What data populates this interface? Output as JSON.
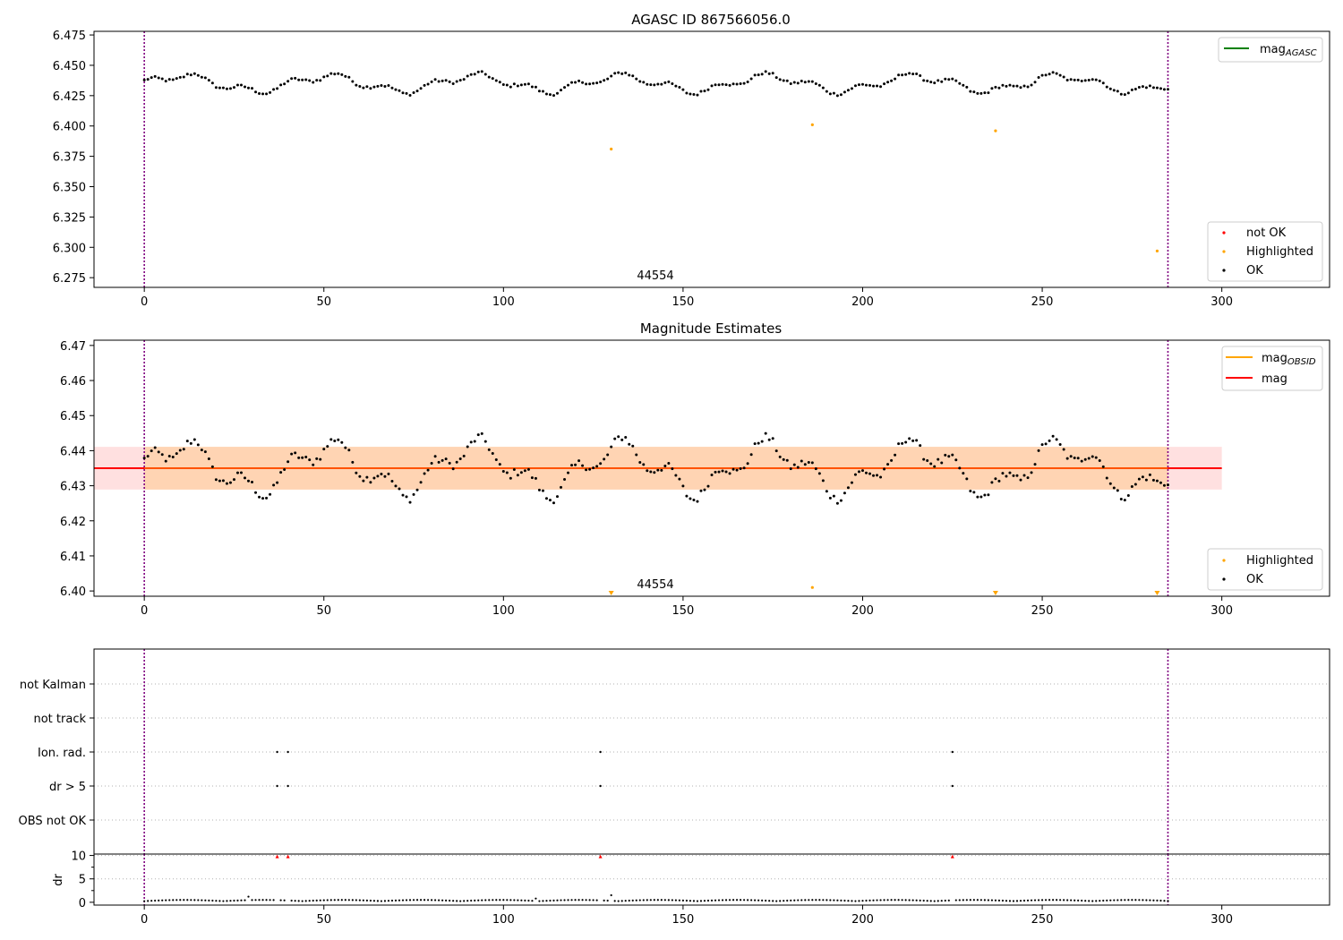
{
  "chart_data": [
    {
      "type": "scatter",
      "title": "AGASC ID 867566056.0",
      "xlabel": "",
      "ylabel": "",
      "xlim": [
        -14,
        330
      ],
      "ylim": [
        6.267,
        6.478
      ],
      "xticks": [
        0,
        50,
        100,
        150,
        200,
        250,
        300
      ],
      "yticks": [
        6.275,
        6.3,
        6.325,
        6.35,
        6.375,
        6.4,
        6.425,
        6.45,
        6.475
      ],
      "ytick_decimals": 3,
      "vlines": [
        0,
        285
      ],
      "annotation": {
        "text": "44554",
        "x": 142.5,
        "y": 6.271
      },
      "line_legend": [
        {
          "base": "mag",
          "sub": "AGASC",
          "color": "#008000"
        }
      ],
      "marker_legend": [
        {
          "label": "not OK",
          "color": "#ff0000"
        },
        {
          "label": "Highlighted",
          "color": "#ffa500"
        },
        {
          "label": "OK",
          "color": "#000000"
        }
      ],
      "highlighted": [
        [
          130,
          6.381
        ],
        [
          186,
          6.401
        ],
        [
          237,
          6.396
        ],
        [
          282,
          6.297
        ]
      ]
    },
    {
      "type": "scatter",
      "title": "Magnitude Estimates",
      "xlabel": "",
      "ylabel": "",
      "xlim": [
        -14,
        330
      ],
      "ylim": [
        6.3985,
        6.4715
      ],
      "xticks": [
        0,
        50,
        100,
        150,
        200,
        250,
        300
      ],
      "yticks": [
        6.4,
        6.41,
        6.42,
        6.43,
        6.44,
        6.45,
        6.46,
        6.47
      ],
      "ytick_decimals": 2,
      "vlines": [
        0,
        285
      ],
      "annotation": {
        "text": "44554",
        "x": 142.5,
        "y": 6.4015
      },
      "mag": {
        "value": 6.435,
        "low": 6.4289,
        "high": 6.4411,
        "color": "#ff0000"
      },
      "mag_obsid": {
        "value": 6.435,
        "low": 6.4289,
        "high": 6.4411,
        "x_range": [
          0,
          285
        ],
        "color": "#ffa500"
      },
      "line_legend": [
        {
          "base": "mag",
          "sub": "OBSID",
          "color": "#ffa500"
        },
        {
          "base": "mag",
          "sub": "",
          "color": "#ff0000"
        }
      ],
      "marker_legend": [
        {
          "label": "Highlighted",
          "color": "#ffa500"
        },
        {
          "label": "OK",
          "color": "#000000"
        }
      ],
      "highlighted_inside": [
        [
          186,
          6.401
        ]
      ],
      "highlighted_below": [
        130,
        237,
        282
      ]
    },
    {
      "type": "scatter",
      "title": "",
      "xlabel": "",
      "ylabel": "",
      "xlim": [
        -14,
        330
      ],
      "categories": [
        "not Kalman",
        "not track",
        "Ion. rad.",
        "dr > 5",
        "OBS not OK"
      ],
      "vlines": [
        0,
        285
      ],
      "flags": {
        "Ion. rad.": [
          37,
          40,
          127,
          225
        ],
        "dr > 5": [
          37,
          40,
          127,
          225
        ]
      }
    },
    {
      "type": "scatter",
      "title": "",
      "xlabel": "",
      "ylabel": "dr",
      "xlim": [
        -14,
        330
      ],
      "ylim": [
        -0.6,
        10.3
      ],
      "xticks": [
        0,
        50,
        100,
        150,
        200,
        250,
        300
      ],
      "yticks": [
        0,
        5,
        10
      ],
      "vlines": [
        0,
        285
      ],
      "outliers": [
        37,
        40,
        127,
        225
      ],
      "dr_special": [
        [
          29,
          1.2
        ],
        [
          109,
          0.8
        ],
        [
          130,
          1.5
        ]
      ]
    }
  ]
}
